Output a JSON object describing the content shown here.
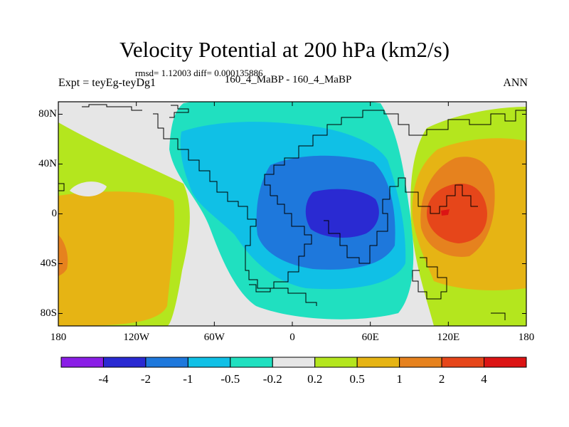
{
  "header": {
    "title": "Velocity Potential at 200 hPa (km2/s)",
    "stats": "rmsd= 1.12003 diff= 0.000135886",
    "experiment": "Expt = teyEg-teyDg1",
    "subtitle": "160_4_MaBP - 160_4_MaBP",
    "season": "ANN"
  },
  "axes": {
    "y_ticks": [
      {
        "label": "80N",
        "value": 80
      },
      {
        "label": "40N",
        "value": 40
      },
      {
        "label": "0",
        "value": 0
      },
      {
        "label": "40S",
        "value": -40
      },
      {
        "label": "80S",
        "value": -80
      }
    ],
    "x_ticks": [
      {
        "label": "180",
        "value": -180
      },
      {
        "label": "120W",
        "value": -120
      },
      {
        "label": "60W",
        "value": -60
      },
      {
        "label": "0",
        "value": 0
      },
      {
        "label": "60E",
        "value": 60
      },
      {
        "label": "120E",
        "value": 120
      },
      {
        "label": "180",
        "value": 180
      }
    ],
    "lon_range": [
      -180,
      180
    ],
    "lat_range": [
      -90,
      90
    ]
  },
  "colorbar": {
    "colors": [
      "#8a1ee6",
      "#2a2ad2",
      "#1e78dc",
      "#10c0e6",
      "#20e0c0",
      "#e6e6e6",
      "#b4e61e",
      "#e6b414",
      "#e6821e",
      "#e6461a",
      "#dc1414"
    ],
    "labels": [
      "-4",
      "-2",
      "-1",
      "-0.5",
      "-0.2",
      "0.2",
      "0.5",
      "1",
      "2",
      "4"
    ]
  }
}
